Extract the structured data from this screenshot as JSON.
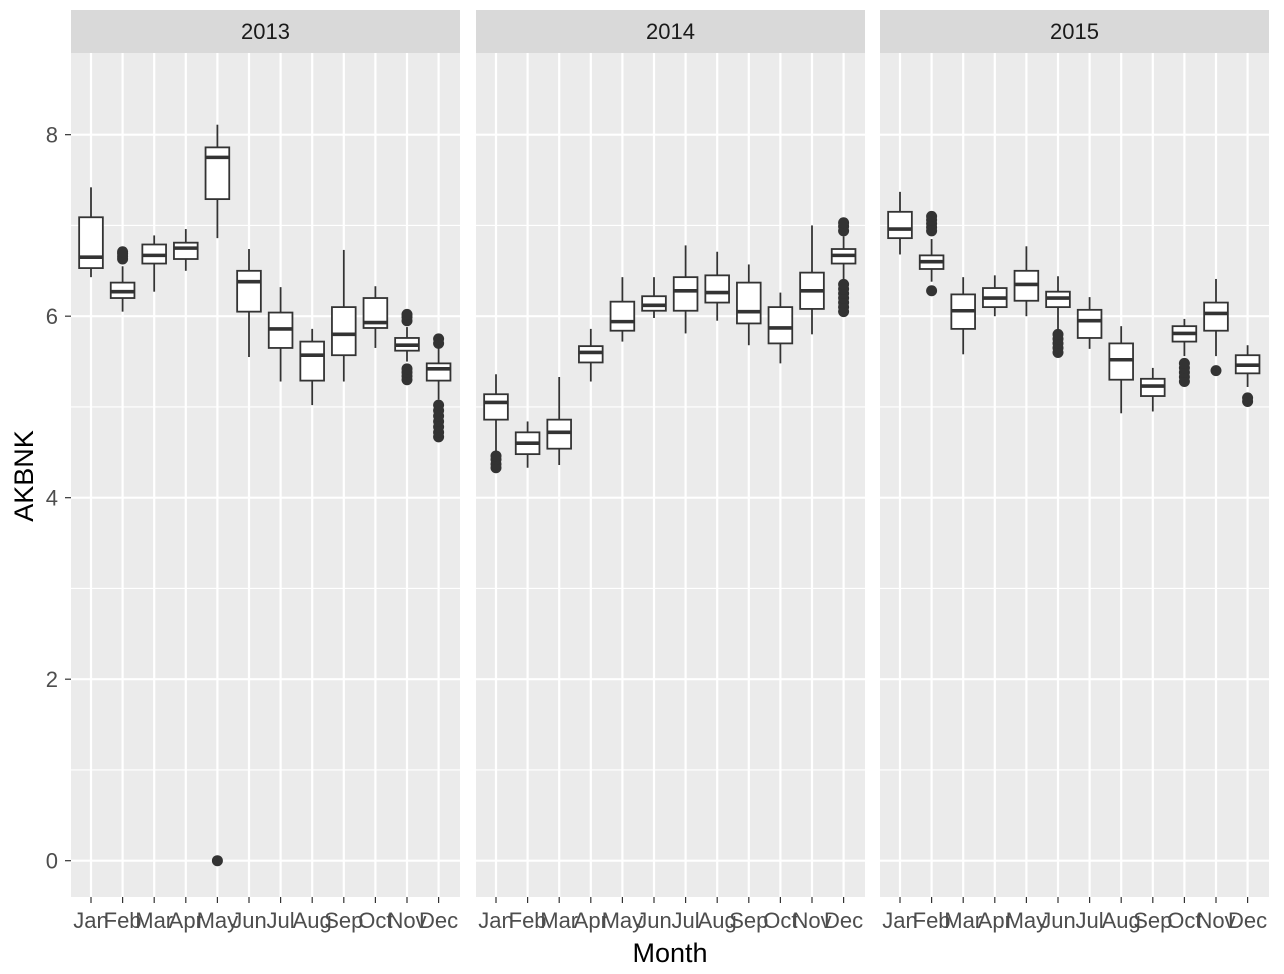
{
  "chart_data": {
    "type": "boxplot",
    "facet_by": "year",
    "xlabel": "Month",
    "ylabel": "AKBNK",
    "ylim": [
      -0.4,
      8.9
    ],
    "y_ticks": [
      "0",
      "2",
      "4",
      "6",
      "8"
    ],
    "y_tick_values": [
      0,
      2,
      4,
      6,
      8
    ],
    "categories": [
      "Jan",
      "Feb",
      "Mar",
      "Apr",
      "May",
      "Jun",
      "Jul",
      "Aug",
      "Sep",
      "Oct",
      "Nov",
      "Dec"
    ],
    "grid": true,
    "panel_background": "#ebebeb",
    "strip_background": "#d9d9d9",
    "box_color": "#333333",
    "facets": [
      {
        "label": "2013",
        "boxes": [
          {
            "month": "Jan",
            "lower": 6.43,
            "q1": 6.53,
            "median": 6.65,
            "q3": 7.09,
            "upper": 7.42,
            "outliers": []
          },
          {
            "month": "Feb",
            "lower": 6.05,
            "q1": 6.2,
            "median": 6.27,
            "q3": 6.37,
            "upper": 6.55,
            "outliers": [
              6.63,
              6.66,
              6.69,
              6.71
            ]
          },
          {
            "month": "Mar",
            "lower": 6.27,
            "q1": 6.58,
            "median": 6.67,
            "q3": 6.79,
            "upper": 6.89,
            "outliers": []
          },
          {
            "month": "Apr",
            "lower": 6.5,
            "q1": 6.63,
            "median": 6.75,
            "q3": 6.81,
            "upper": 6.96,
            "outliers": []
          },
          {
            "month": "May",
            "lower": 6.86,
            "q1": 7.29,
            "median": 7.75,
            "q3": 7.86,
            "upper": 8.11,
            "outliers": [
              0.0
            ]
          },
          {
            "month": "Jun",
            "lower": 5.55,
            "q1": 6.05,
            "median": 6.38,
            "q3": 6.5,
            "upper": 6.74,
            "outliers": []
          },
          {
            "month": "Jul",
            "lower": 5.28,
            "q1": 5.65,
            "median": 5.86,
            "q3": 6.04,
            "upper": 6.32,
            "outliers": []
          },
          {
            "month": "Aug",
            "lower": 5.02,
            "q1": 5.29,
            "median": 5.57,
            "q3": 5.72,
            "upper": 5.86,
            "outliers": []
          },
          {
            "month": "Sep",
            "lower": 5.28,
            "q1": 5.57,
            "median": 5.8,
            "q3": 6.1,
            "upper": 6.73,
            "outliers": []
          },
          {
            "month": "Oct",
            "lower": 5.65,
            "q1": 5.87,
            "median": 5.93,
            "q3": 6.2,
            "upper": 6.33,
            "outliers": []
          },
          {
            "month": "Nov",
            "lower": 5.5,
            "q1": 5.62,
            "median": 5.68,
            "q3": 5.76,
            "upper": 5.88,
            "outliers": [
              5.3,
              5.34,
              5.38,
              5.42,
              5.95,
              5.99,
              6.02
            ]
          },
          {
            "month": "Dec",
            "lower": 5.08,
            "q1": 5.29,
            "median": 5.42,
            "q3": 5.48,
            "upper": 5.65,
            "outliers": [
              4.67,
              4.72,
              4.78,
              4.84,
              4.9,
              4.96,
              5.02,
              5.7,
              5.75
            ]
          }
        ]
      },
      {
        "label": "2014",
        "boxes": [
          {
            "month": "Jan",
            "lower": 4.5,
            "q1": 4.86,
            "median": 5.05,
            "q3": 5.14,
            "upper": 5.36,
            "outliers": [
              4.33,
              4.37,
              4.42,
              4.46
            ]
          },
          {
            "month": "Feb",
            "lower": 4.33,
            "q1": 4.48,
            "median": 4.6,
            "q3": 4.72,
            "upper": 4.84,
            "outliers": []
          },
          {
            "month": "Mar",
            "lower": 4.36,
            "q1": 4.54,
            "median": 4.72,
            "q3": 4.86,
            "upper": 5.33,
            "outliers": []
          },
          {
            "month": "Apr",
            "lower": 5.28,
            "q1": 5.49,
            "median": 5.6,
            "q3": 5.67,
            "upper": 5.86,
            "outliers": []
          },
          {
            "month": "May",
            "lower": 5.72,
            "q1": 5.84,
            "median": 5.94,
            "q3": 6.16,
            "upper": 6.43,
            "outliers": []
          },
          {
            "month": "Jun",
            "lower": 5.98,
            "q1": 6.06,
            "median": 6.12,
            "q3": 6.22,
            "upper": 6.43,
            "outliers": []
          },
          {
            "month": "Jul",
            "lower": 5.81,
            "q1": 6.06,
            "median": 6.28,
            "q3": 6.43,
            "upper": 6.78,
            "outliers": []
          },
          {
            "month": "Aug",
            "lower": 5.95,
            "q1": 6.15,
            "median": 6.26,
            "q3": 6.45,
            "upper": 6.71,
            "outliers": []
          },
          {
            "month": "Sep",
            "lower": 5.68,
            "q1": 5.92,
            "median": 6.05,
            "q3": 6.37,
            "upper": 6.57,
            "outliers": []
          },
          {
            "month": "Oct",
            "lower": 5.48,
            "q1": 5.7,
            "median": 5.87,
            "q3": 6.1,
            "upper": 6.26,
            "outliers": []
          },
          {
            "month": "Nov",
            "lower": 5.8,
            "q1": 6.08,
            "median": 6.28,
            "q3": 6.48,
            "upper": 7.0,
            "outliers": []
          },
          {
            "month": "Dec",
            "lower": 6.4,
            "q1": 6.58,
            "median": 6.67,
            "q3": 6.74,
            "upper": 6.88,
            "outliers": [
              6.05,
              6.1,
              6.15,
              6.2,
              6.25,
              6.3,
              6.35,
              6.94,
              6.99,
              7.03
            ]
          }
        ]
      },
      {
        "label": "2015",
        "boxes": [
          {
            "month": "Jan",
            "lower": 6.68,
            "q1": 6.86,
            "median": 6.96,
            "q3": 7.15,
            "upper": 7.37,
            "outliers": []
          },
          {
            "month": "Feb",
            "lower": 6.38,
            "q1": 6.52,
            "median": 6.6,
            "q3": 6.67,
            "upper": 6.85,
            "outliers": [
              6.28,
              6.94,
              6.98,
              7.02,
              7.06,
              7.1
            ]
          },
          {
            "month": "Mar",
            "lower": 5.58,
            "q1": 5.86,
            "median": 6.06,
            "q3": 6.24,
            "upper": 6.43,
            "outliers": []
          },
          {
            "month": "Apr",
            "lower": 6.0,
            "q1": 6.1,
            "median": 6.2,
            "q3": 6.31,
            "upper": 6.45,
            "outliers": []
          },
          {
            "month": "May",
            "lower": 6.0,
            "q1": 6.17,
            "median": 6.35,
            "q3": 6.5,
            "upper": 6.77,
            "outliers": []
          },
          {
            "month": "Jun",
            "lower": 5.85,
            "q1": 6.1,
            "median": 6.2,
            "q3": 6.27,
            "upper": 6.44,
            "outliers": [
              5.6,
              5.65,
              5.7,
              5.75,
              5.8
            ]
          },
          {
            "month": "Jul",
            "lower": 5.64,
            "q1": 5.76,
            "median": 5.95,
            "q3": 6.07,
            "upper": 6.21,
            "outliers": []
          },
          {
            "month": "Aug",
            "lower": 4.93,
            "q1": 5.3,
            "median": 5.52,
            "q3": 5.7,
            "upper": 5.89,
            "outliers": []
          },
          {
            "month": "Sep",
            "lower": 4.95,
            "q1": 5.12,
            "median": 5.23,
            "q3": 5.31,
            "upper": 5.43,
            "outliers": []
          },
          {
            "month": "Oct",
            "lower": 5.56,
            "q1": 5.72,
            "median": 5.81,
            "q3": 5.89,
            "upper": 5.97,
            "outliers": [
              5.28,
              5.33,
              5.38,
              5.43,
              5.48
            ]
          },
          {
            "month": "Nov",
            "lower": 5.56,
            "q1": 5.84,
            "median": 6.03,
            "q3": 6.15,
            "upper": 6.41,
            "outliers": [
              5.4
            ]
          },
          {
            "month": "Dec",
            "lower": 5.22,
            "q1": 5.37,
            "median": 5.46,
            "q3": 5.57,
            "upper": 5.68,
            "outliers": [
              5.06,
              5.1
            ]
          }
        ]
      }
    ]
  }
}
